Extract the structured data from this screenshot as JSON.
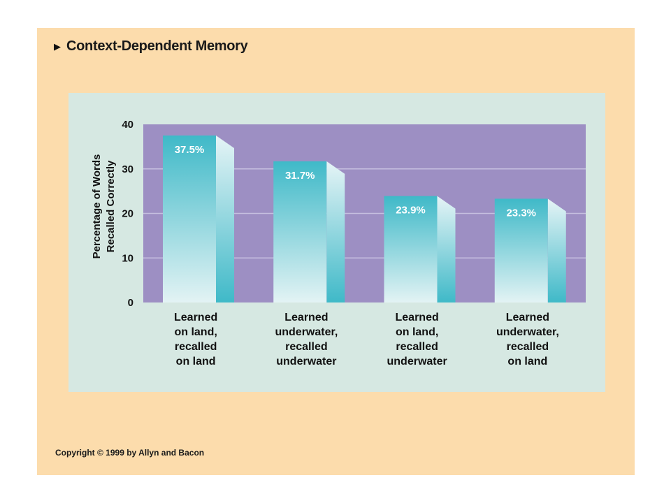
{
  "slide": {
    "title": "Context-Dependent Memory",
    "copyright": "Copyright © 1999 by Allyn and Bacon"
  },
  "colors": {
    "slide_bg": "#fcdcac",
    "panel_bg": "#d6e8e2",
    "plot_bg": "#9d8fc3",
    "bar_front_top": "#3fb9c8",
    "bar_front_bottom": "#e3f3f4",
    "bar_side_top": "#e6f4f6",
    "bar_side_bottom": "#3fb9c8"
  },
  "chart_data": {
    "type": "bar",
    "title": "Context-Dependent Memory",
    "ylabel": [
      "Percentage of Words",
      "Recalled Correctly"
    ],
    "xlabel": "",
    "ylim": [
      0,
      40
    ],
    "yticks": [
      0,
      10,
      20,
      30,
      40
    ],
    "grid": true,
    "categories": [
      [
        "Learned",
        "on land,",
        "recalled",
        "on land"
      ],
      [
        "Learned",
        "underwater,",
        "recalled",
        "underwater"
      ],
      [
        "Learned",
        "on land,",
        "recalled",
        "underwater"
      ],
      [
        "Learned",
        "underwater,",
        "recalled",
        "on land"
      ]
    ],
    "values": [
      37.5,
      31.7,
      23.9,
      23.3
    ],
    "value_labels": [
      "37.5%",
      "31.7%",
      "23.9%",
      "23.3%"
    ]
  }
}
